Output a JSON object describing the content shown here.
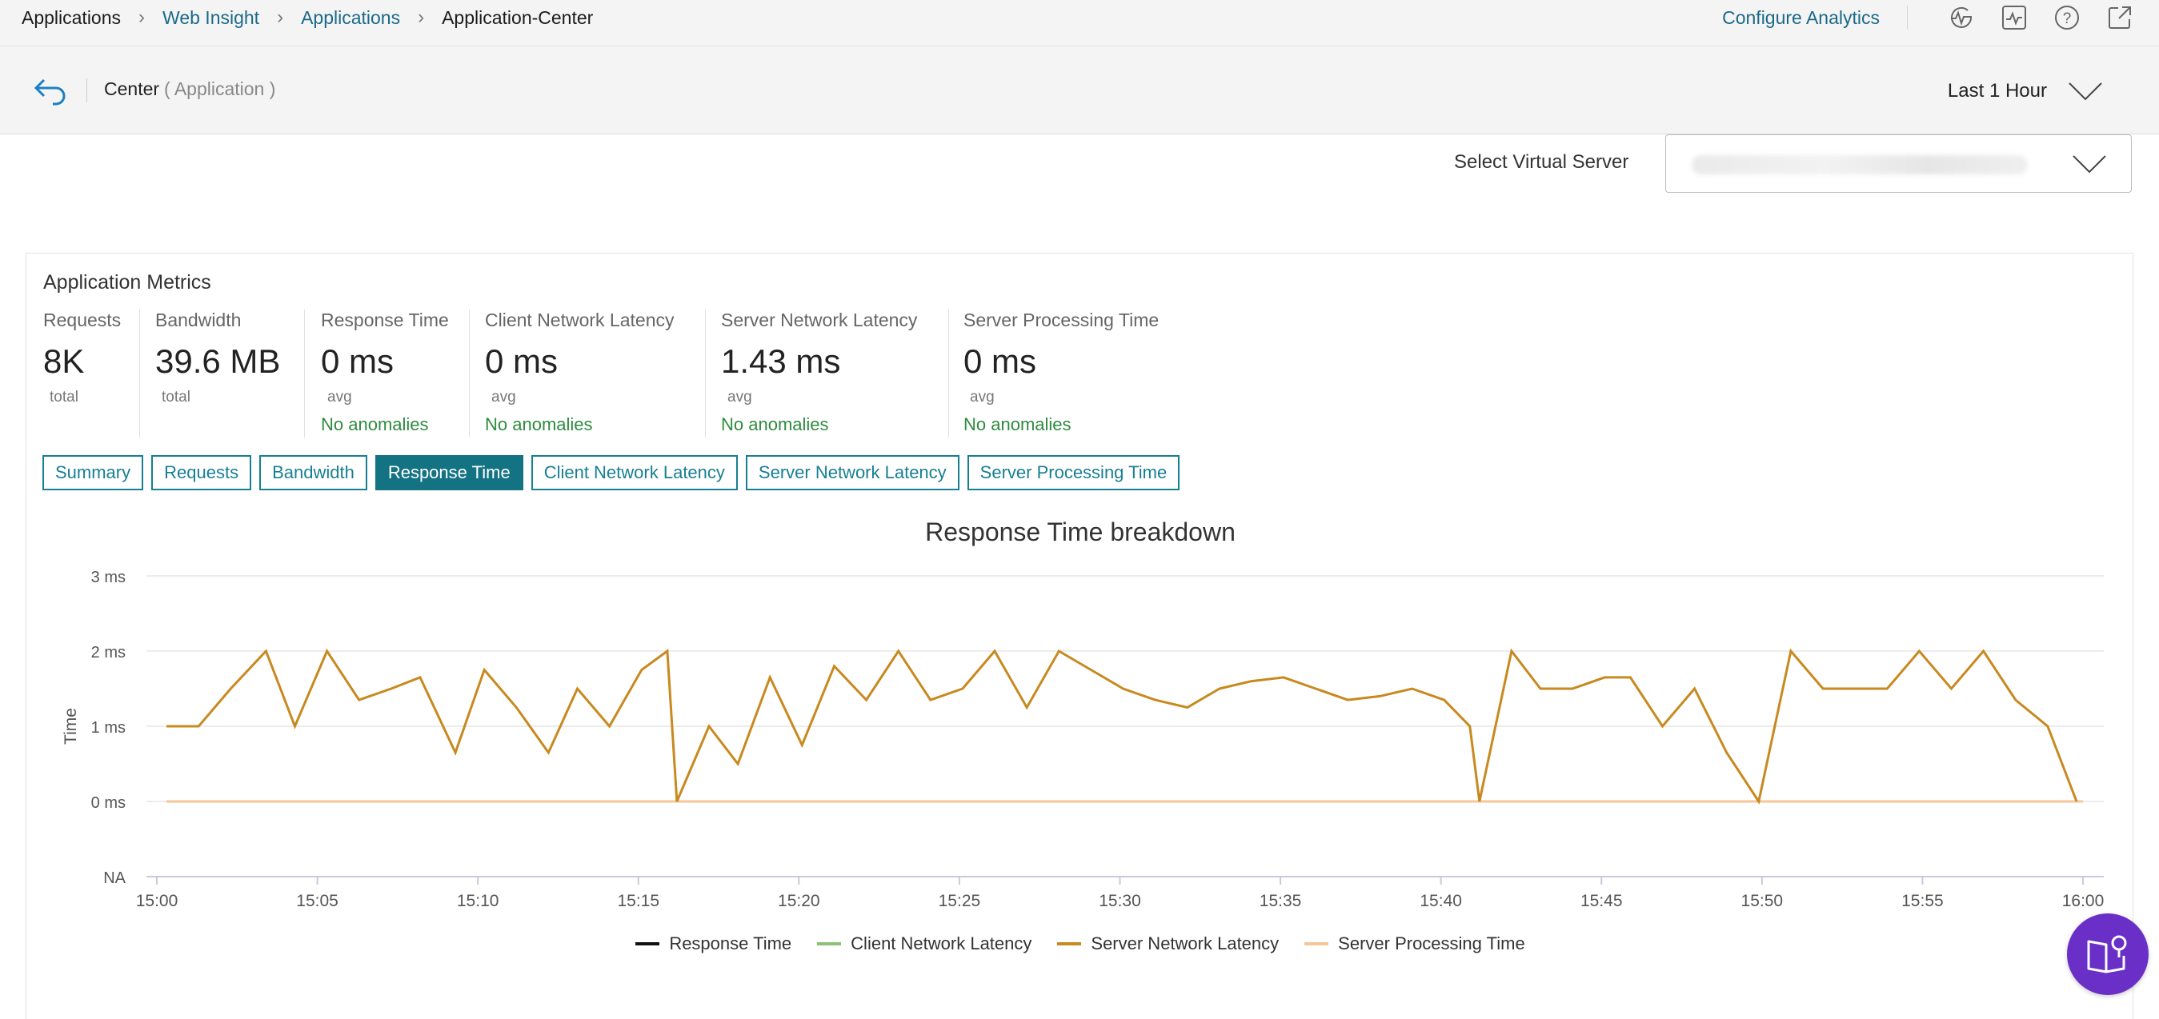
{
  "breadcrumbs": [
    {
      "label": "Applications"
    },
    {
      "label": "Web Insight"
    },
    {
      "label": "Applications"
    },
    {
      "label": "Application-Center"
    }
  ],
  "topbar": {
    "configure_link": "Configure Analytics",
    "icons": [
      "analytics-pulse-icon",
      "monitor-icon",
      "help-icon",
      "open-external-icon"
    ]
  },
  "subheader": {
    "title": "Center",
    "subtitle": "( Application )",
    "time_range": "Last 1 Hour"
  },
  "virtual_server": {
    "label": "Select Virtual Server",
    "value": ""
  },
  "metrics_panel": {
    "title": "Application Metrics",
    "metrics": [
      {
        "label": "Requests",
        "value": "8K",
        "unit": "total",
        "anomaly": ""
      },
      {
        "label": "Bandwidth",
        "value": "39.6 MB",
        "unit": "total",
        "anomaly": ""
      },
      {
        "label": "Response Time",
        "value": "0 ms",
        "unit": "avg",
        "anomaly": "No anomalies"
      },
      {
        "label": "Client Network Latency",
        "value": "0 ms",
        "unit": "avg",
        "anomaly": "No anomalies"
      },
      {
        "label": "Server Network Latency",
        "value": "1.43 ms",
        "unit": "avg",
        "anomaly": "No anomalies"
      },
      {
        "label": "Server Processing Time",
        "value": "0 ms",
        "unit": "avg",
        "anomaly": "No anomalies"
      }
    ],
    "tabs": [
      "Summary",
      "Requests",
      "Bandwidth",
      "Response Time",
      "Client Network Latency",
      "Server Network Latency",
      "Server Processing Time"
    ],
    "active_tab": "Response Time"
  },
  "chart_data": {
    "type": "line",
    "title": "Response Time breakdown",
    "ylabel": "Time",
    "xlabel": "",
    "yticks": [
      "NA",
      "0 ms",
      "1 ms",
      "2 ms",
      "3 ms"
    ],
    "ylim": [
      -1,
      3
    ],
    "xticks": [
      "15:00",
      "15:05",
      "15:10",
      "15:15",
      "15:20",
      "15:25",
      "15:30",
      "15:35",
      "15:40",
      "15:45",
      "15:50",
      "15:55",
      "16:00"
    ],
    "xlim_minutes": [
      0,
      60
    ],
    "grid": true,
    "legend_position": "bottom",
    "series": [
      {
        "name": "Response Time",
        "color": "#111111",
        "x": [
          0.3,
          60
        ],
        "y": [
          0,
          0
        ]
      },
      {
        "name": "Client Network Latency",
        "color": "#8cc276",
        "x": [
          0.3,
          60
        ],
        "y": [
          0,
          0
        ]
      },
      {
        "name": "Server Network Latency",
        "color": "#c8891f",
        "x": [
          0.3,
          1.3,
          2.3,
          3.4,
          4.3,
          5.3,
          6.3,
          7.3,
          8.2,
          9.3,
          10.2,
          11.2,
          12.2,
          13.1,
          14.1,
          15.1,
          15.9,
          16.2,
          17.2,
          18.1,
          19.1,
          20.1,
          21.1,
          22.1,
          23.1,
          24.1,
          25.1,
          26.1,
          27.1,
          28.1,
          29.1,
          30.1,
          31.1,
          32.1,
          33.1,
          34.1,
          35.1,
          36.1,
          37.1,
          38.1,
          39.1,
          40.1,
          40.9,
          41.2,
          42.2,
          43.1,
          44.1,
          45.1,
          45.9,
          46.9,
          47.9,
          48.9,
          49.9,
          50.9,
          51.9,
          52.9,
          53.9,
          54.9,
          55.9,
          56.9,
          57.9,
          58.9,
          59.8
        ],
        "y": [
          1,
          1,
          1.5,
          2,
          1,
          2,
          1.35,
          1.5,
          1.65,
          0.65,
          1.75,
          1.25,
          0.65,
          1.5,
          1,
          1.75,
          2,
          0,
          1,
          0.5,
          1.65,
          0.75,
          1.8,
          1.35,
          2,
          1.35,
          1.5,
          2,
          1.25,
          2,
          1.75,
          1.5,
          1.35,
          1.25,
          1.5,
          1.6,
          1.65,
          1.5,
          1.35,
          1.4,
          1.5,
          1.35,
          1,
          0,
          2,
          1.5,
          1.5,
          1.65,
          1.65,
          1,
          1.5,
          0.65,
          0,
          2,
          1.5,
          1.5,
          1.5,
          2,
          1.5,
          2,
          1.35,
          1,
          0
        ]
      },
      {
        "name": "Server Processing Time",
        "color": "#f5c699",
        "x": [
          0.3,
          60
        ],
        "y": [
          0,
          0
        ]
      }
    ]
  },
  "colors": {
    "link": "#1b6a89",
    "tab_accent": "#177f93",
    "tab_active_bg": "#147382",
    "anomaly_text": "#2e8b3e",
    "fab": "#6a2fc7"
  },
  "fab": {
    "icon": "help-book-icon"
  }
}
